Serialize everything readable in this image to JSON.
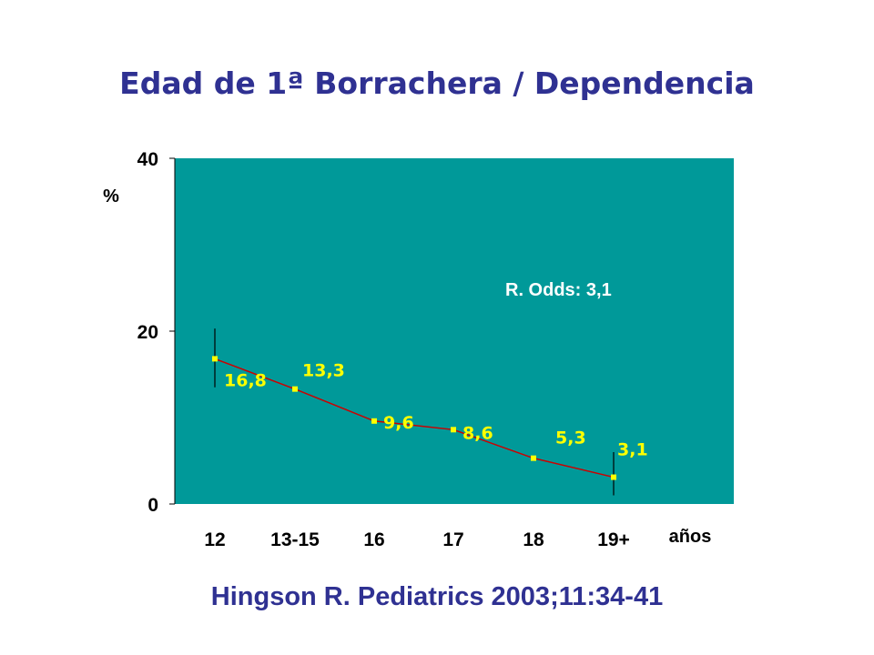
{
  "slide": {
    "title": "Edad de 1ª Borrachera / Dependencia",
    "citation": "Hingson R. Pediatrics 2003;11:34-41"
  },
  "colors": {
    "title": "#2f3192",
    "plot_background": "#009999",
    "line": "#cc0000",
    "markers": "#ffff00",
    "data_labels": "#ffff00",
    "annotation": "#ffffff"
  },
  "chart_data": {
    "type": "line",
    "title": "Edad de 1ª Borrachera / Dependencia",
    "xlabel": "años",
    "ylabel": "%",
    "categories": [
      "12",
      "13-15",
      "16",
      "17",
      "18",
      "19+"
    ],
    "series": [
      {
        "values": [
          16.8,
          13.3,
          9.6,
          8.6,
          5.3,
          3.1
        ],
        "data_labels": [
          "16,8",
          "13,3",
          "9,6",
          "8,6",
          "5,3",
          "3,1"
        ]
      }
    ],
    "ylim": [
      0,
      40
    ],
    "yticks": [
      0,
      20,
      40
    ],
    "grid": false,
    "legend": "none",
    "annotations": [
      "R. Odds: 3,1"
    ],
    "error_bars": [
      {
        "category": "12",
        "low": 13.5,
        "high": 20.3
      },
      {
        "category": "19+",
        "low": 1.0,
        "high": 6.0
      }
    ]
  }
}
